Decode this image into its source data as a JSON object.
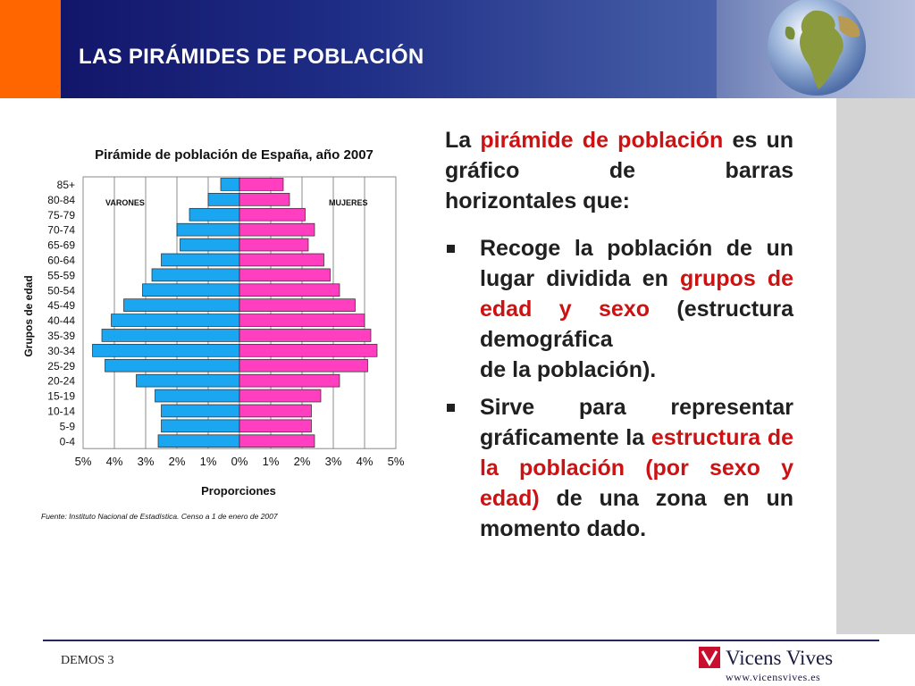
{
  "header": {
    "title": "LAS PIRÁMIDES DE POBLACIÓN"
  },
  "chart_data": {
    "type": "bar",
    "orientation": "horizontal",
    "title": "Pirámide de población de España, año 2007",
    "xlabel": "Proporciones",
    "ylabel": "Grupos de edad",
    "categories": [
      "85+",
      "80-84",
      "75-79",
      "70-74",
      "65-69",
      "60-64",
      "55-59",
      "50-54",
      "45-49",
      "40-44",
      "35-39",
      "30-34",
      "25-29",
      "20-24",
      "15-19",
      "10-14",
      "5-9",
      "0-4"
    ],
    "x_ticks": [
      "5%",
      "4%",
      "3%",
      "2%",
      "1%",
      "0%",
      "1%",
      "2%",
      "3%",
      "4%",
      "5%"
    ],
    "xlim": [
      -5,
      5
    ],
    "grid": true,
    "series": [
      {
        "name": "VARONES",
        "color": "#1aa6f0",
        "values": [
          0.6,
          1.0,
          1.6,
          2.0,
          1.9,
          2.5,
          2.8,
          3.1,
          3.7,
          4.1,
          4.4,
          4.7,
          4.3,
          3.3,
          2.7,
          2.5,
          2.5,
          2.6
        ]
      },
      {
        "name": "MUJERES",
        "color": "#ff3ec0",
        "values": [
          1.4,
          1.6,
          2.1,
          2.4,
          2.2,
          2.7,
          2.9,
          3.2,
          3.7,
          4.0,
          4.2,
          4.4,
          4.1,
          3.2,
          2.6,
          2.3,
          2.3,
          2.4
        ]
      }
    ],
    "source": "Fuente: Instituto Nacional de Estadística. Censo a 1 de enero de 2007"
  },
  "content": {
    "lead_text": [
      "La ",
      "pirámide de población",
      " es un gráfico de barras",
      "horizontales que:"
    ],
    "bullets": [
      {
        "parts": [
          "Recoge la población de un lugar dividida en ",
          "grupos de edad y sexo",
          " (estructura demográfica",
          "de la población)."
        ]
      },
      {
        "parts": [
          "Sirve para representar gráficamente la ",
          "estructura de la población (por sexo y edad)",
          " de una zona en un",
          "momento dado."
        ]
      }
    ],
    "colors": {
      "highlight": "#cc1212",
      "text": "#202020"
    }
  },
  "footer": {
    "left_text": "DEMOS 3",
    "brand": "Vicens Vives",
    "url": "www.vicensvives.es"
  }
}
